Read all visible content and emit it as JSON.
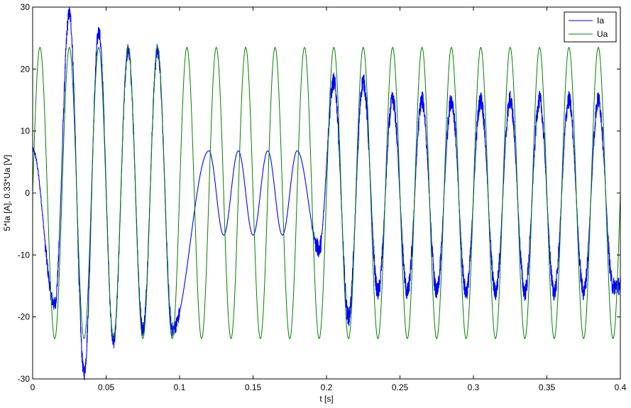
{
  "chart_data": {
    "type": "line",
    "xlabel": "t [s]",
    "ylabel": "5*Ia [A], 0.33*Ua [V]",
    "xlim": [
      0,
      0.4
    ],
    "ylim": [
      -30,
      30
    ],
    "xticks": [
      0,
      0.05,
      0.1,
      0.15,
      0.2,
      0.25,
      0.3,
      0.35,
      0.4
    ],
    "xtick_labels": [
      "0",
      "0.05",
      "0.1",
      "0.15",
      "0.2",
      "0.25",
      "0.3",
      "0.35",
      "0.4"
    ],
    "yticks": [
      -30,
      -20,
      -10,
      0,
      10,
      20,
      30
    ],
    "ytick_labels": [
      "-30",
      "-20",
      "-10",
      "0",
      "10",
      "20",
      "30"
    ],
    "grid": false,
    "legend_position": "top-right",
    "series": [
      {
        "name": "Ia",
        "color": "#0000ff",
        "frequency_hz": 50,
        "segments": [
          {
            "t_start": 0.0,
            "t_end": 0.1,
            "amplitude": 22,
            "phase_deg": 130,
            "ripple": 1.2,
            "note_peaks": "peaks ~29 at 0.025 s, troughs ~-29 at 0.035 s"
          },
          {
            "t_start": 0.1,
            "t_end": 0.19,
            "amplitude": 6.8,
            "phase_deg": -90,
            "ripple": 0.0
          },
          {
            "t_start": 0.19,
            "t_end": 0.4,
            "amplitude": 16,
            "phase_deg": -85,
            "ripple": 1.5
          }
        ],
        "key_points": [
          {
            "x": 0.0,
            "y": 7
          },
          {
            "x": 0.015,
            "y": -18
          },
          {
            "x": 0.025,
            "y": 29
          },
          {
            "x": 0.035,
            "y": -29
          },
          {
            "x": 0.045,
            "y": 26
          },
          {
            "x": 0.055,
            "y": -24
          },
          {
            "x": 0.065,
            "y": 23
          },
          {
            "x": 0.075,
            "y": -22
          },
          {
            "x": 0.085,
            "y": 23
          },
          {
            "x": 0.095,
            "y": -22
          },
          {
            "x": 0.12,
            "y": 6.8
          },
          {
            "x": 0.13,
            "y": -6.8
          },
          {
            "x": 0.14,
            "y": 6.8
          },
          {
            "x": 0.15,
            "y": -6.8
          },
          {
            "x": 0.16,
            "y": 6.8
          },
          {
            "x": 0.17,
            "y": -6.8
          },
          {
            "x": 0.18,
            "y": 6.8
          },
          {
            "x": 0.195,
            "y": -9
          },
          {
            "x": 0.205,
            "y": 18
          },
          {
            "x": 0.215,
            "y": -20
          },
          {
            "x": 0.225,
            "y": 18
          },
          {
            "x": 0.235,
            "y": -16
          },
          {
            "x": 0.245,
            "y": 15
          },
          {
            "x": 0.255,
            "y": -16
          },
          {
            "x": 0.265,
            "y": 15
          },
          {
            "x": 0.275,
            "y": -16
          },
          {
            "x": 0.285,
            "y": 15
          },
          {
            "x": 0.295,
            "y": -16
          },
          {
            "x": 0.305,
            "y": 15
          },
          {
            "x": 0.315,
            "y": -16
          },
          {
            "x": 0.325,
            "y": 15
          },
          {
            "x": 0.335,
            "y": -16
          },
          {
            "x": 0.345,
            "y": 15
          },
          {
            "x": 0.355,
            "y": -16
          },
          {
            "x": 0.365,
            "y": 15
          },
          {
            "x": 0.375,
            "y": -16
          },
          {
            "x": 0.385,
            "y": 15
          },
          {
            "x": 0.395,
            "y": -15
          }
        ]
      },
      {
        "name": "Ua",
        "color": "#008000",
        "frequency_hz": 50,
        "amplitude": 23.5,
        "phase_deg": 0,
        "t_start": 0.0,
        "t_end": 0.4
      }
    ]
  }
}
